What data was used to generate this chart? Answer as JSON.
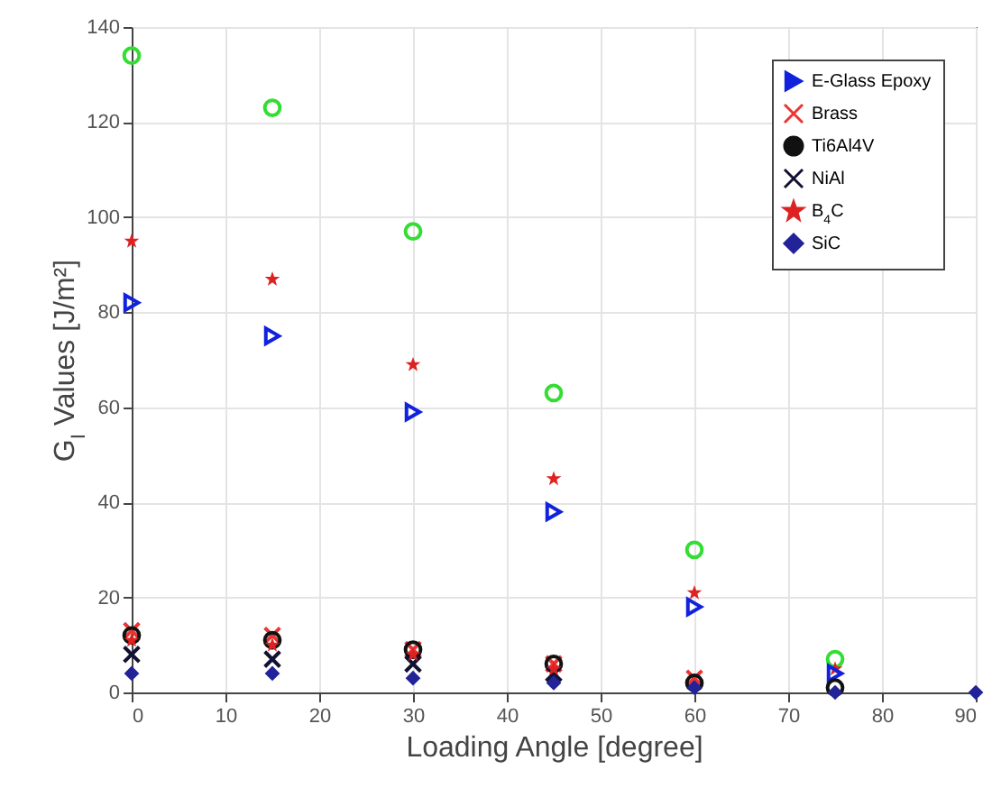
{
  "chart_data": {
    "type": "scatter",
    "xlabel": "Loading Angle [degree]",
    "ylabel": "G$_{I}$ Values [J/m²]",
    "x": [
      0,
      15,
      30,
      45,
      60,
      75,
      90
    ],
    "series": [
      {
        "color": "#33dd33",
        "marker": "circle",
        "values": [
          134,
          123,
          97,
          63,
          30,
          7,
          null
        ]
      },
      {
        "color": "#dd2222",
        "marker": "star",
        "values": [
          95,
          87,
          69,
          45,
          21,
          5,
          null
        ]
      },
      {
        "name": "E-Glass Epoxy",
        "color": "#1122dd",
        "marker": "triangle",
        "values": [
          82,
          75,
          59,
          38,
          18,
          4,
          null
        ]
      },
      {
        "name": "Brass",
        "color": "#ee3333",
        "marker": "cross",
        "values": [
          13,
          12,
          9,
          6,
          3,
          null,
          null
        ]
      },
      {
        "name": "Ti6Al4V",
        "color": "#111111",
        "marker": "circle",
        "values": [
          12,
          11,
          9,
          6,
          2,
          1,
          null
        ]
      },
      {
        "name": "NiAl",
        "color": "#111133",
        "marker": "cross",
        "values": [
          8,
          7,
          6,
          4,
          null,
          null,
          null
        ]
      },
      {
        "name": "B$_{4}$C",
        "color": "#dd2222",
        "marker": "star",
        "values": [
          11,
          10,
          8,
          5,
          null,
          null,
          null
        ]
      },
      {
        "name": "SiC",
        "color": "#222299",
        "marker": "diamond",
        "values": [
          4,
          4,
          3,
          2,
          1,
          0,
          0
        ]
      }
    ],
    "xlim": [
      0,
      90
    ],
    "xticks": [
      0,
      10,
      20,
      30,
      40,
      50,
      60,
      70,
      80,
      90
    ],
    "ylim": [
      0,
      140
    ],
    "yticks": [
      0,
      20,
      40,
      60,
      80,
      100,
      120,
      140
    ],
    "grid": true,
    "legend": "top right"
  }
}
